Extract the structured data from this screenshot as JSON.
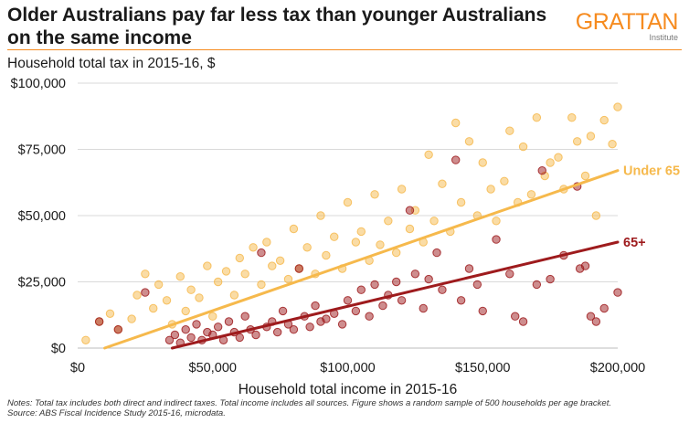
{
  "header": {
    "title_line1": "Older Australians pay far less tax than younger Australians",
    "title_line2": "on the same income",
    "logo_word": "GRATTAN",
    "logo_sub": "Institute"
  },
  "colors": {
    "accent": "#f68b1f",
    "under65": "#f6b94c",
    "over65": "#9e1b1d"
  },
  "chart_data": {
    "type": "scatter",
    "title": "Older Australians pay far less tax than younger Australians on the same income",
    "ylabel": "Household total tax in 2015-16, $",
    "xlabel": "Household total income in 2015-16",
    "xlim": [
      0,
      200000
    ],
    "ylim": [
      0,
      100000
    ],
    "x_ticks": [
      0,
      50000,
      100000,
      150000,
      200000
    ],
    "x_tick_labels": [
      "$0",
      "$50,000",
      "$100,000",
      "$150,000",
      "$200,000"
    ],
    "y_ticks": [
      0,
      25000,
      50000,
      75000,
      100000
    ],
    "y_tick_labels": [
      "$0",
      "$25,000",
      "$50,000",
      "$75,000",
      "$100,000"
    ],
    "grid": "horizontal",
    "series": [
      {
        "name": "Under 65",
        "color": "#f6b94c",
        "trend": [
          [
            10000,
            0
          ],
          [
            200000,
            67000
          ]
        ],
        "sample_points": [
          [
            3000,
            3000
          ],
          [
            8000,
            10000
          ],
          [
            12000,
            13000
          ],
          [
            15000,
            7000
          ],
          [
            20000,
            11000
          ],
          [
            22000,
            20000
          ],
          [
            25000,
            28000
          ],
          [
            28000,
            15000
          ],
          [
            30000,
            24000
          ],
          [
            33000,
            18000
          ],
          [
            35000,
            9000
          ],
          [
            38000,
            27000
          ],
          [
            40000,
            14000
          ],
          [
            42000,
            22000
          ],
          [
            45000,
            19000
          ],
          [
            48000,
            31000
          ],
          [
            50000,
            12000
          ],
          [
            52000,
            25000
          ],
          [
            55000,
            29000
          ],
          [
            58000,
            20000
          ],
          [
            60000,
            34000
          ],
          [
            62000,
            28000
          ],
          [
            65000,
            38000
          ],
          [
            68000,
            24000
          ],
          [
            70000,
            40000
          ],
          [
            72000,
            31000
          ],
          [
            75000,
            33000
          ],
          [
            78000,
            26000
          ],
          [
            80000,
            45000
          ],
          [
            82000,
            30000
          ],
          [
            85000,
            38000
          ],
          [
            88000,
            28000
          ],
          [
            90000,
            50000
          ],
          [
            92000,
            35000
          ],
          [
            95000,
            42000
          ],
          [
            98000,
            30000
          ],
          [
            100000,
            55000
          ],
          [
            103000,
            40000
          ],
          [
            105000,
            44000
          ],
          [
            108000,
            33000
          ],
          [
            110000,
            58000
          ],
          [
            112000,
            39000
          ],
          [
            115000,
            48000
          ],
          [
            118000,
            36000
          ],
          [
            120000,
            60000
          ],
          [
            123000,
            45000
          ],
          [
            125000,
            52000
          ],
          [
            128000,
            40000
          ],
          [
            130000,
            73000
          ],
          [
            132000,
            48000
          ],
          [
            135000,
            62000
          ],
          [
            138000,
            44000
          ],
          [
            140000,
            85000
          ],
          [
            142000,
            55000
          ],
          [
            145000,
            78000
          ],
          [
            148000,
            50000
          ],
          [
            150000,
            70000
          ],
          [
            153000,
            60000
          ],
          [
            155000,
            48000
          ],
          [
            158000,
            63000
          ],
          [
            160000,
            82000
          ],
          [
            163000,
            55000
          ],
          [
            165000,
            76000
          ],
          [
            168000,
            58000
          ],
          [
            170000,
            87000
          ],
          [
            173000,
            65000
          ],
          [
            175000,
            70000
          ],
          [
            178000,
            72000
          ],
          [
            180000,
            60000
          ],
          [
            183000,
            87000
          ],
          [
            185000,
            78000
          ],
          [
            188000,
            65000
          ],
          [
            190000,
            80000
          ],
          [
            192000,
            50000
          ],
          [
            195000,
            86000
          ],
          [
            198000,
            77000
          ],
          [
            200000,
            91000
          ]
        ]
      },
      {
        "name": "65+",
        "color": "#9e1b1d",
        "trend": [
          [
            35000,
            0
          ],
          [
            200000,
            40000
          ]
        ],
        "sample_points": [
          [
            8000,
            10000
          ],
          [
            15000,
            7000
          ],
          [
            25000,
            21000
          ],
          [
            34000,
            3000
          ],
          [
            36000,
            5000
          ],
          [
            38000,
            2000
          ],
          [
            40000,
            7000
          ],
          [
            42000,
            4000
          ],
          [
            44000,
            9000
          ],
          [
            46000,
            3000
          ],
          [
            48000,
            6000
          ],
          [
            50000,
            5000
          ],
          [
            52000,
            8000
          ],
          [
            54000,
            3000
          ],
          [
            56000,
            10000
          ],
          [
            58000,
            6000
          ],
          [
            60000,
            4000
          ],
          [
            62000,
            12000
          ],
          [
            64000,
            7000
          ],
          [
            66000,
            5000
          ],
          [
            68000,
            36000
          ],
          [
            70000,
            8000
          ],
          [
            72000,
            10000
          ],
          [
            74000,
            6000
          ],
          [
            76000,
            14000
          ],
          [
            78000,
            9000
          ],
          [
            80000,
            7000
          ],
          [
            82000,
            30000
          ],
          [
            84000,
            12000
          ],
          [
            86000,
            8000
          ],
          [
            88000,
            16000
          ],
          [
            90000,
            10000
          ],
          [
            92000,
            11000
          ],
          [
            95000,
            13000
          ],
          [
            98000,
            9000
          ],
          [
            100000,
            18000
          ],
          [
            103000,
            14000
          ],
          [
            105000,
            22000
          ],
          [
            108000,
            12000
          ],
          [
            110000,
            24000
          ],
          [
            113000,
            16000
          ],
          [
            115000,
            20000
          ],
          [
            118000,
            25000
          ],
          [
            120000,
            18000
          ],
          [
            123000,
            52000
          ],
          [
            125000,
            28000
          ],
          [
            128000,
            15000
          ],
          [
            130000,
            26000
          ],
          [
            133000,
            36000
          ],
          [
            135000,
            22000
          ],
          [
            140000,
            71000
          ],
          [
            142000,
            18000
          ],
          [
            145000,
            30000
          ],
          [
            148000,
            24000
          ],
          [
            150000,
            14000
          ],
          [
            155000,
            41000
          ],
          [
            160000,
            28000
          ],
          [
            162000,
            12000
          ],
          [
            165000,
            10000
          ],
          [
            170000,
            24000
          ],
          [
            172000,
            67000
          ],
          [
            175000,
            26000
          ],
          [
            180000,
            35000
          ],
          [
            185000,
            61000
          ],
          [
            186000,
            30000
          ],
          [
            188000,
            31000
          ],
          [
            190000,
            12000
          ],
          [
            192000,
            10000
          ],
          [
            195000,
            15000
          ],
          [
            200000,
            21000
          ]
        ]
      }
    ],
    "annotations": [
      {
        "text": "Under 65",
        "series": "Under 65"
      },
      {
        "text": "65+",
        "series": "65+"
      }
    ]
  },
  "footer": {
    "notes": "Notes: Total tax includes both direct and indirect taxes. Total income includes all sources. Figure shows a random sample of 500 households per age bracket.",
    "source": "Source: ABS Fiscal Incidence Study 2015-16, microdata."
  }
}
